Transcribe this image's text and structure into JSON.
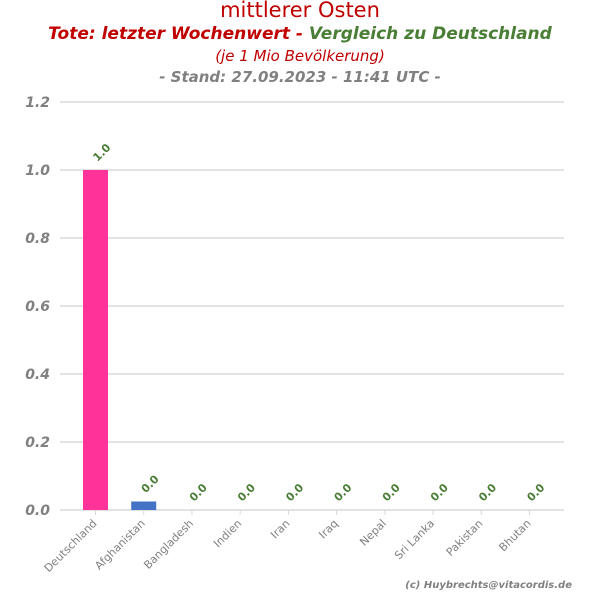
{
  "header": {
    "title": "mittlerer Osten",
    "subtitle_red": "Tote: letzter Wochenwert - ",
    "subtitle_green": "Vergleich zu Deutschland",
    "subtitle2": "(je 1 Mio Bevölkerung)",
    "subtitle3": "- Stand: 27.09.2023 - 11:41 UTC -"
  },
  "credit": "(c) Huybrechts@vitacordis.de",
  "chart_data": {
    "type": "bar",
    "categories": [
      "Deutschland",
      "Afghanistan",
      "Bangladesh",
      "Indien",
      "Iran",
      "Iraq",
      "Nepal",
      "Sri Lanka",
      "Pakistan",
      "Bhutan"
    ],
    "values": [
      1.0,
      0.025,
      0.0,
      0.0,
      0.0,
      0.0,
      0.0,
      0.0,
      0.0,
      0.0
    ],
    "value_labels": [
      "1.0",
      "0.0",
      "0.0",
      "0.0",
      "0.0",
      "0.0",
      "0.0",
      "0.0",
      "0.0",
      "0.0"
    ],
    "colors": [
      "#ff3399",
      "#4472c4",
      "#4472c4",
      "#4472c4",
      "#4472c4",
      "#4472c4",
      "#4472c4",
      "#4472c4",
      "#4472c4",
      "#4472c4"
    ],
    "ylim": [
      0,
      1.2
    ],
    "yticks": [
      "0.0",
      "0.2",
      "0.4",
      "0.6",
      "0.8",
      "1.0",
      "1.2"
    ],
    "grid": true,
    "label_color": "#4a7d35",
    "tick_color": "#808080"
  }
}
